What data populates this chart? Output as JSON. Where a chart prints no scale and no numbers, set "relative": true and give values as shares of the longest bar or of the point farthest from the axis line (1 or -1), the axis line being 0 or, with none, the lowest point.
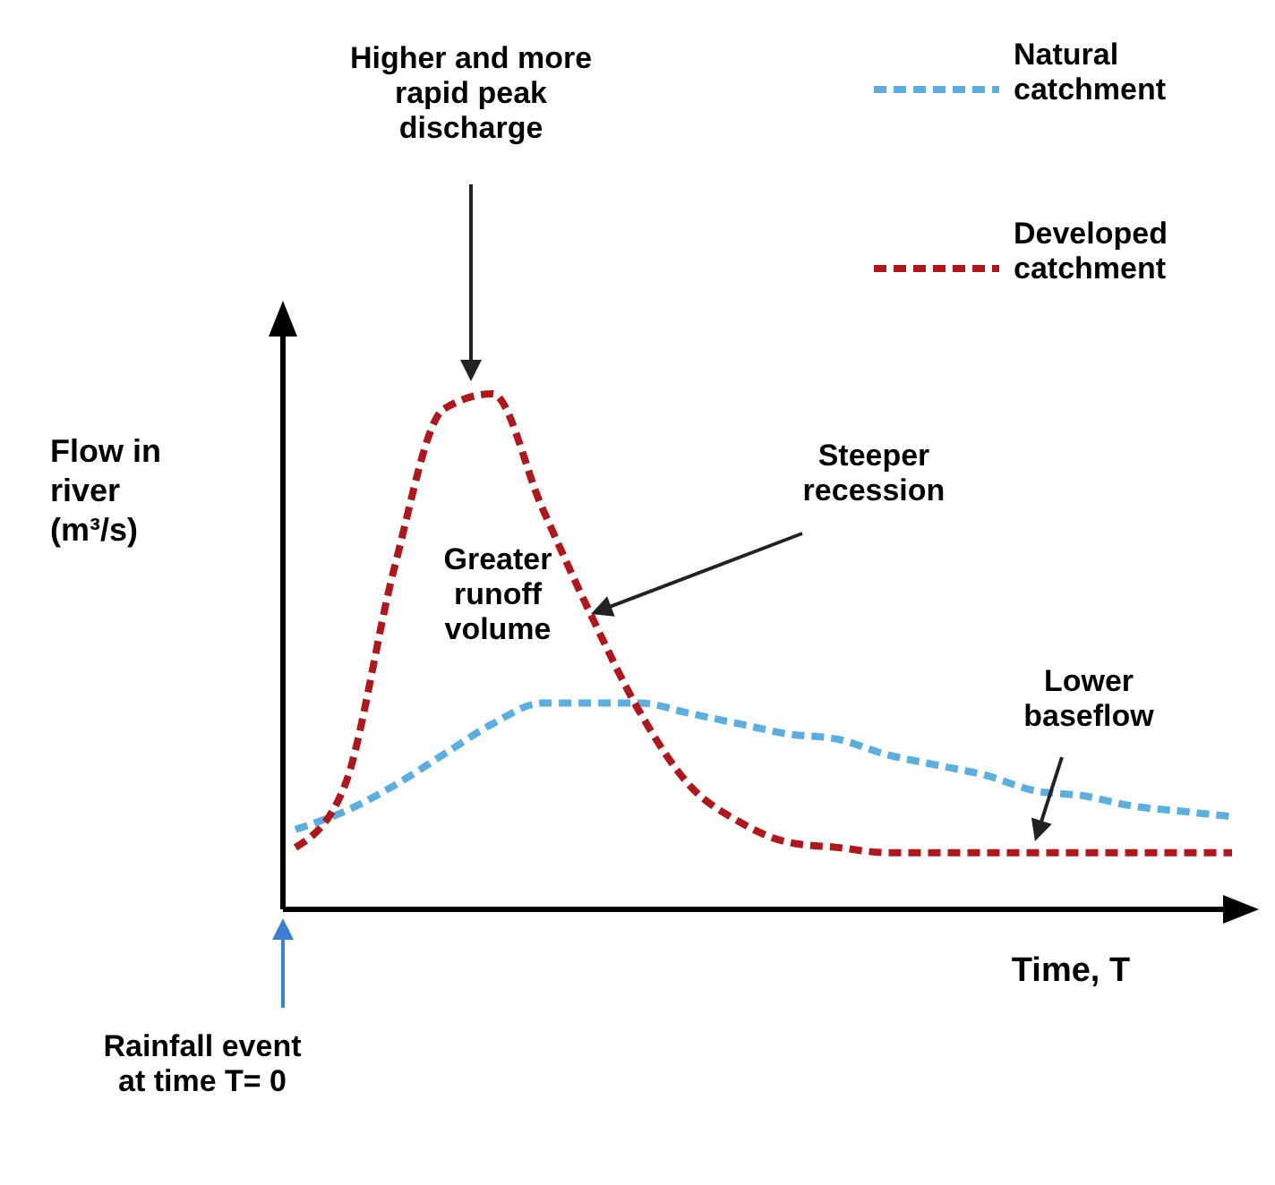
{
  "chart_data": {
    "type": "line",
    "relative": true,
    "xlabel": "Time, T",
    "ylabel": "Flow in river (m³/s)",
    "categories": [
      null,
      null,
      null,
      null,
      null,
      null,
      null,
      null,
      null,
      null,
      null,
      null,
      null,
      null,
      null,
      null,
      null,
      null,
      null,
      null
    ],
    "series": [
      {
        "name": "Natural catchment",
        "color": "#5aaee0",
        "values": [
          0.155,
          0.19,
          0.24,
          0.3,
          0.36,
          0.4,
          0.4,
          0.4,
          0.38,
          0.36,
          0.34,
          0.33,
          0.3,
          0.28,
          0.26,
          0.23,
          0.22,
          0.2,
          0.19,
          0.18
        ]
      },
      {
        "name": "Developed catchment",
        "color": "#b0161a",
        "values": [
          0.12,
          0.24,
          0.66,
          0.97,
          1.0,
          0.78,
          0.57,
          0.38,
          0.24,
          0.17,
          0.13,
          0.12,
          0.11,
          0.11,
          0.11,
          0.11,
          0.11,
          0.11,
          0.11,
          0.11
        ]
      }
    ],
    "annotations": [
      "Higher and more rapid peak discharge",
      "Steeper recession",
      "Greater runoff volume",
      "Lower baseflow",
      "Rainfall event at time T= 0"
    ],
    "legend": "top right",
    "line_style": "dashed",
    "marker": "none"
  }
}
